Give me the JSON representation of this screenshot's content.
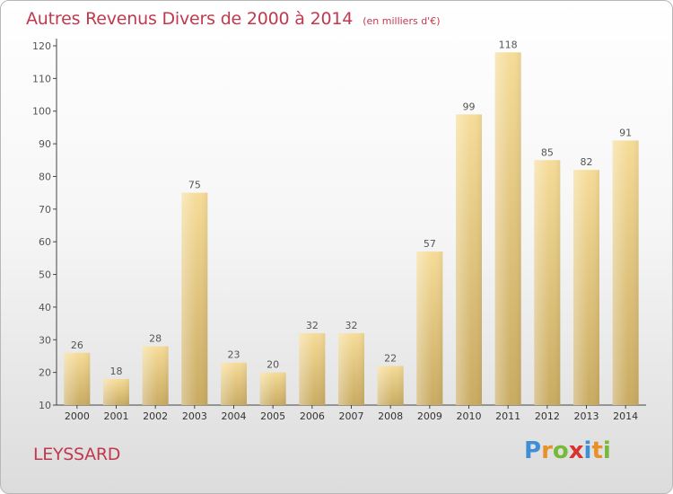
{
  "chart_data": {
    "type": "bar",
    "title": "Autres Revenus Divers de 2000 à 2014",
    "subtitle": "(en milliers d'€)",
    "categories": [
      "2000",
      "2001",
      "2002",
      "2003",
      "2004",
      "2005",
      "2006",
      "2007",
      "2008",
      "2009",
      "2010",
      "2011",
      "2012",
      "2013",
      "2014"
    ],
    "values": [
      26,
      18,
      28,
      75,
      23,
      20,
      32,
      32,
      22,
      57,
      99,
      118,
      85,
      82,
      91
    ],
    "ylim": [
      10,
      120
    ],
    "yticks": [
      10,
      20,
      30,
      40,
      50,
      60,
      70,
      80,
      90,
      100,
      110,
      120
    ],
    "grid": false,
    "bar_color": "#e8c97a",
    "data_labels": true
  },
  "place_name": "LEYSSARD",
  "brand": {
    "letters": [
      "P",
      "r",
      "o",
      "x",
      "i",
      "t",
      "i"
    ],
    "colors": [
      "#3f8fd6",
      "#e8902a",
      "#78b83a",
      "#d8332f",
      "#3f8fd6",
      "#e8902a",
      "#78b83a"
    ]
  },
  "colors": {
    "title": "#c0394e",
    "axis": "#444444",
    "label": "#555555"
  }
}
